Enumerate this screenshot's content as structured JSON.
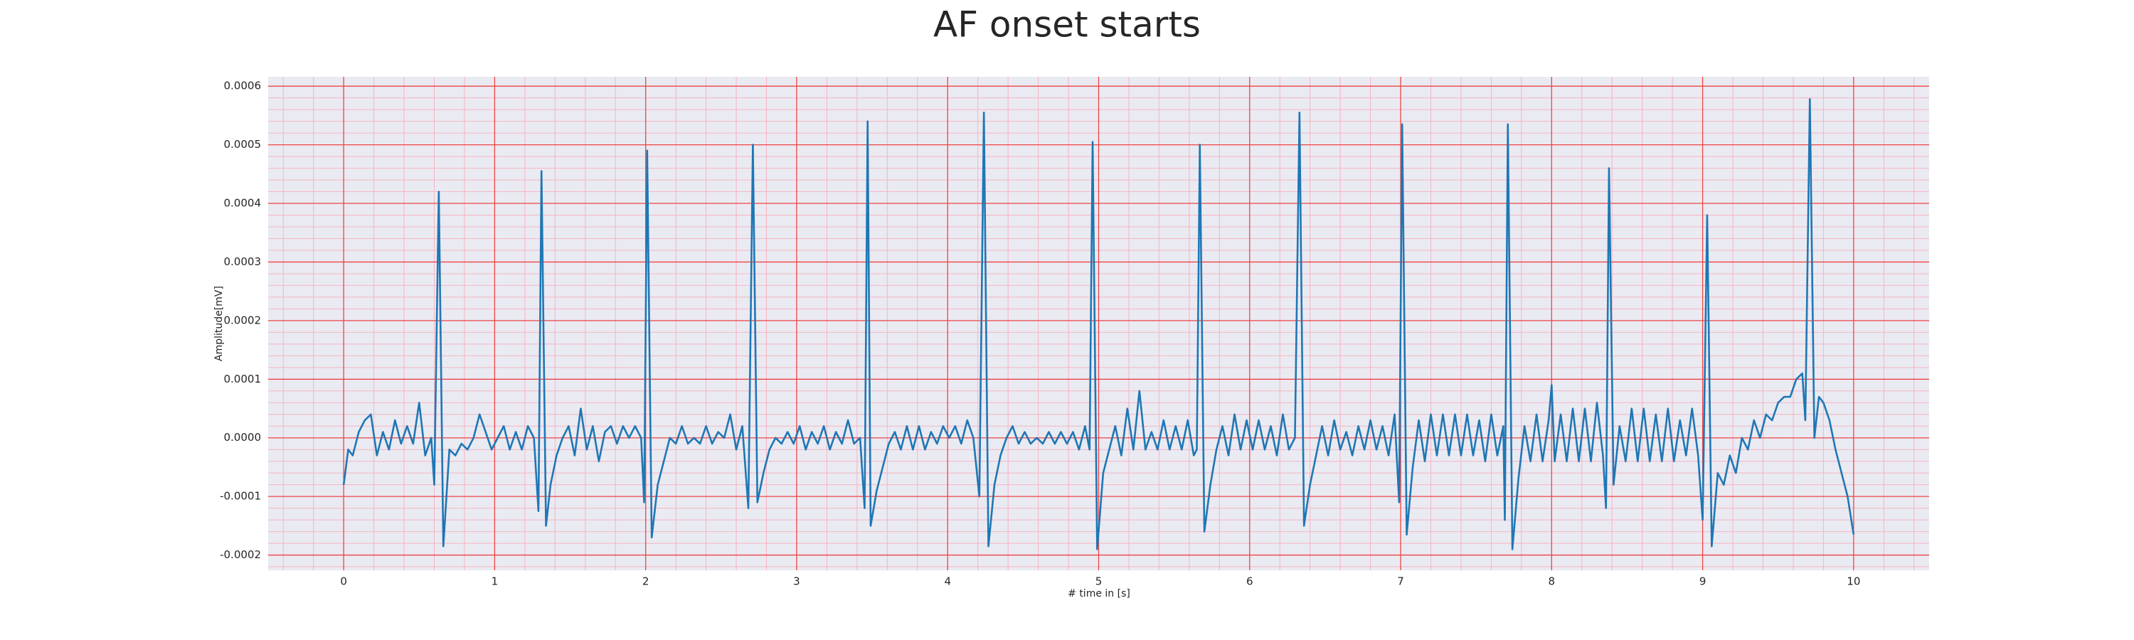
{
  "chart_data": {
    "type": "line",
    "title": "AF onset starts",
    "xlabel": "# time in [s]",
    "ylabel": "Amplitude[mV]",
    "color": "#1f77b4",
    "grid": true,
    "minor_grid": true,
    "xlim": [
      -0.5,
      10.5
    ],
    "xticks": [
      0,
      1,
      2,
      3,
      4,
      5,
      6,
      7,
      8,
      9,
      10
    ],
    "ylim": [
      -0.000226,
      0.000616
    ],
    "yticks": [
      -0.0002,
      -0.0001,
      {
        "value": 0,
        "label": "0.0000"
      },
      0.0001,
      0.0002,
      0.0003,
      0.0004,
      0.0005,
      0.0006
    ],
    "x": [
      0,
      0.03,
      0.06,
      0.1,
      0.14,
      0.18,
      0.22,
      0.26,
      0.3,
      0.34,
      0.38,
      0.42,
      0.46,
      0.5,
      0.54,
      0.58,
      0.6,
      0.63,
      0.66,
      0.7,
      0.74,
      0.78,
      0.82,
      0.86,
      0.9,
      0.94,
      0.98,
      1.02,
      1.06,
      1.1,
      1.14,
      1.18,
      1.22,
      1.26,
      1.29,
      1.31,
      1.34,
      1.37,
      1.41,
      1.45,
      1.49,
      1.53,
      1.57,
      1.61,
      1.65,
      1.69,
      1.73,
      1.77,
      1.81,
      1.85,
      1.89,
      1.93,
      1.97,
      1.99,
      2.01,
      2.04,
      2.08,
      2.12,
      2.16,
      2.2,
      2.24,
      2.28,
      2.32,
      2.36,
      2.4,
      2.44,
      2.48,
      2.52,
      2.56,
      2.6,
      2.64,
      2.68,
      2.71,
      2.74,
      2.78,
      2.82,
      2.86,
      2.9,
      2.94,
      2.98,
      3.02,
      3.06,
      3.1,
      3.14,
      3.18,
      3.22,
      3.26,
      3.3,
      3.34,
      3.38,
      3.42,
      3.45,
      3.47,
      3.49,
      3.53,
      3.57,
      3.61,
      3.65,
      3.69,
      3.73,
      3.77,
      3.81,
      3.85,
      3.89,
      3.93,
      3.97,
      4.01,
      4.05,
      4.09,
      4.13,
      4.17,
      4.21,
      4.24,
      4.27,
      4.31,
      4.35,
      4.39,
      4.43,
      4.47,
      4.51,
      4.55,
      4.59,
      4.63,
      4.67,
      4.71,
      4.75,
      4.79,
      4.83,
      4.87,
      4.91,
      4.94,
      4.96,
      4.99,
      5.03,
      5.07,
      5.11,
      5.15,
      5.19,
      5.23,
      5.27,
      5.31,
      5.35,
      5.39,
      5.43,
      5.47,
      5.51,
      5.55,
      5.59,
      5.63,
      5.65,
      5.67,
      5.7,
      5.74,
      5.78,
      5.82,
      5.86,
      5.9,
      5.94,
      5.98,
      6.02,
      6.06,
      6.1,
      6.14,
      6.18,
      6.22,
      6.26,
      6.3,
      6.33,
      6.36,
      6.4,
      6.44,
      6.48,
      6.52,
      6.56,
      6.6,
      6.64,
      6.68,
      6.72,
      6.76,
      6.8,
      6.84,
      6.88,
      6.92,
      6.96,
      6.99,
      7.01,
      7.04,
      7.08,
      7.12,
      7.16,
      7.2,
      7.24,
      7.28,
      7.32,
      7.36,
      7.4,
      7.44,
      7.48,
      7.52,
      7.56,
      7.6,
      7.64,
      7.68,
      7.69,
      7.71,
      7.74,
      7.78,
      7.82,
      7.86,
      7.9,
      7.94,
      7.98,
      8.0,
      8.02,
      8.06,
      8.1,
      8.14,
      8.18,
      8.22,
      8.26,
      8.3,
      8.34,
      8.36,
      8.38,
      8.41,
      8.45,
      8.49,
      8.53,
      8.57,
      8.61,
      8.65,
      8.69,
      8.73,
      8.77,
      8.81,
      8.85,
      8.89,
      8.93,
      8.97,
      9.0,
      9.03,
      9.06,
      9.1,
      9.14,
      9.18,
      9.22,
      9.26,
      9.3,
      9.34,
      9.38,
      9.42,
      9.46,
      9.5,
      9.54,
      9.58,
      9.62,
      9.66,
      9.68,
      9.71,
      9.74,
      9.77,
      9.8,
      9.84,
      9.88,
      9.92,
      9.96,
      10.0
    ],
    "values": [
      -8e-05,
      -2e-05,
      -3e-05,
      1e-05,
      3e-05,
      4e-05,
      -3e-05,
      1e-05,
      -2e-05,
      3e-05,
      -1e-05,
      2e-05,
      -1e-05,
      6e-05,
      -3e-05,
      0.0,
      -8e-05,
      0.00042,
      -0.000185,
      -2e-05,
      -3e-05,
      -1e-05,
      -2e-05,
      0.0,
      4e-05,
      1e-05,
      -2e-05,
      0.0,
      2e-05,
      -2e-05,
      1e-05,
      -2e-05,
      2e-05,
      0.0,
      -0.000125,
      0.000455,
      -0.00015,
      -8e-05,
      -3e-05,
      0.0,
      2e-05,
      -3e-05,
      5e-05,
      -2e-05,
      2e-05,
      -4e-05,
      1e-05,
      2e-05,
      -1e-05,
      2e-05,
      0.0,
      2e-05,
      0.0,
      -0.00011,
      0.00049,
      -0.00017,
      -8e-05,
      -4e-05,
      0.0,
      -1e-05,
      2e-05,
      -1e-05,
      0.0,
      -1e-05,
      2e-05,
      -1e-05,
      1e-05,
      0.0,
      4e-05,
      -2e-05,
      2e-05,
      -0.00012,
      0.0005,
      -0.00011,
      -6e-05,
      -2e-05,
      0.0,
      -1e-05,
      1e-05,
      -1e-05,
      2e-05,
      -2e-05,
      1e-05,
      -1e-05,
      2e-05,
      -2e-05,
      1e-05,
      -1e-05,
      3e-05,
      -1e-05,
      0.0,
      -0.00012,
      0.00054,
      -0.00015,
      -9e-05,
      -5e-05,
      -1e-05,
      1e-05,
      -2e-05,
      2e-05,
      -2e-05,
      2e-05,
      -2e-05,
      1e-05,
      -1e-05,
      2e-05,
      0.0,
      2e-05,
      -1e-05,
      3e-05,
      0.0,
      -0.0001,
      0.000555,
      -0.000185,
      -8e-05,
      -3e-05,
      0.0,
      2e-05,
      -1e-05,
      1e-05,
      -1e-05,
      0.0,
      -1e-05,
      1e-05,
      -1e-05,
      1e-05,
      -1e-05,
      1e-05,
      -2e-05,
      2e-05,
      -2e-05,
      0.000505,
      -0.00019,
      -6e-05,
      -2e-05,
      2e-05,
      -3e-05,
      5e-05,
      -2e-05,
      8e-05,
      -2e-05,
      1e-05,
      -2e-05,
      3e-05,
      -2e-05,
      2e-05,
      -2e-05,
      3e-05,
      -3e-05,
      -2e-05,
      0.0005,
      -0.00016,
      -8e-05,
      -2e-05,
      2e-05,
      -3e-05,
      4e-05,
      -2e-05,
      3e-05,
      -2e-05,
      3e-05,
      -2e-05,
      2e-05,
      -3e-05,
      4e-05,
      -2e-05,
      0.0,
      0.000555,
      -0.00015,
      -8e-05,
      -3e-05,
      2e-05,
      -3e-05,
      3e-05,
      -2e-05,
      1e-05,
      -3e-05,
      2e-05,
      -2e-05,
      3e-05,
      -2e-05,
      2e-05,
      -3e-05,
      4e-05,
      -0.00011,
      0.000535,
      -0.000165,
      -5e-05,
      3e-05,
      -4e-05,
      4e-05,
      -3e-05,
      4e-05,
      -3e-05,
      4e-05,
      -3e-05,
      4e-05,
      -3e-05,
      3e-05,
      -4e-05,
      4e-05,
      -3e-05,
      2e-05,
      -0.00014,
      0.000535,
      -0.00019,
      -7e-05,
      2e-05,
      -4e-05,
      4e-05,
      -4e-05,
      3e-05,
      9e-05,
      -4e-05,
      4e-05,
      -4e-05,
      5e-05,
      -4e-05,
      5e-05,
      -4e-05,
      6e-05,
      -3e-05,
      -0.00012,
      0.00046,
      -8e-05,
      2e-05,
      -4e-05,
      5e-05,
      -4e-05,
      5e-05,
      -4e-05,
      4e-05,
      -4e-05,
      5e-05,
      -4e-05,
      3e-05,
      -3e-05,
      5e-05,
      -3e-05,
      -0.00014,
      0.00038,
      -0.000185,
      -6e-05,
      -8e-05,
      -3e-05,
      -6e-05,
      0.0,
      -2e-05,
      3e-05,
      0.0,
      4e-05,
      3e-05,
      6e-05,
      7e-05,
      7e-05,
      0.0001,
      0.00011,
      3e-05,
      0.000578,
      0.0,
      7e-05,
      6e-05,
      3e-05,
      -2e-05,
      -6e-05,
      -0.0001,
      -0.000165
    ]
  }
}
